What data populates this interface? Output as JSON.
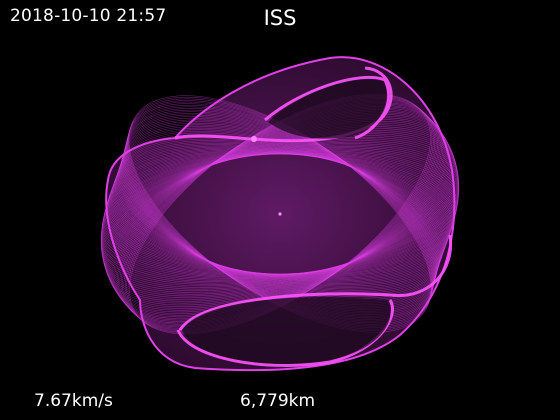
{
  "header": {
    "timestamp": "2018-10-10 21:57",
    "title": "ISS"
  },
  "readouts": {
    "speed": "7.67km/s",
    "distance": "6,779km"
  },
  "colors": {
    "background": "#000000",
    "orbit": "#e040e8",
    "orbit_bright": "#ff55ff",
    "text": "#ffffff"
  },
  "icons": {
    "satellite": "satellite-dot-icon",
    "earth_center": "earth-center-dot-icon"
  }
}
